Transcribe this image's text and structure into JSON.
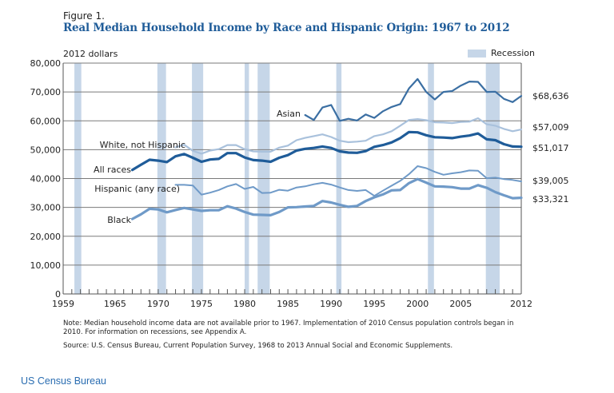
{
  "figure_label": "Figure 1.",
  "credit": "US Census Bureau",
  "note": "Note: Median household income data are not available prior to 1967. Implementation of 2010 Census population controls began in 2010. For information on recessions, see Appendix A.",
  "source": "Source: U.S. Census Bureau, Current Population Survey, 1968 to 2013 Annual Social and Economic Supplements.",
  "chart_data": {
    "type": "line",
    "title": "Real Median Household Income by Race and Hispanic Origin: 1967 to 2012",
    "ylabel": "2012 dollars",
    "xlabel": "",
    "xlim": [
      1959,
      2012
    ],
    "ylim": [
      0,
      80000
    ],
    "grid": true,
    "x_ticks": [
      1959,
      1965,
      1970,
      1975,
      1980,
      1985,
      1990,
      1995,
      2000,
      2005,
      2012
    ],
    "y_ticks": [
      0,
      10000,
      20000,
      30000,
      40000,
      50000,
      60000,
      70000,
      80000
    ],
    "y_tick_labels": [
      "0",
      "10,000",
      "20,000",
      "30,000",
      "40,000",
      "50,000",
      "60,000",
      "70,000",
      "80,000"
    ],
    "legend": {
      "label": "Recession",
      "placement": "top-right",
      "color": "#c6d6e8"
    },
    "recessions": [
      [
        1960.3,
        1961.1
      ],
      [
        1969.9,
        1970.9
      ],
      [
        1973.9,
        1975.2
      ],
      [
        1980.0,
        1980.5
      ],
      [
        1981.5,
        1982.9
      ],
      [
        1990.6,
        1991.2
      ],
      [
        2001.2,
        2001.9
      ],
      [
        2007.9,
        2009.5
      ]
    ],
    "series": [
      {
        "name": "Asian",
        "label": "Asian",
        "end_label": "$68,636",
        "color": "#3b6fa3",
        "width": 2.2,
        "x": [
          1987,
          1988,
          1989,
          1990,
          1991,
          1992,
          1993,
          1994,
          1995,
          1996,
          1997,
          1998,
          1999,
          2000,
          2001,
          2002,
          2003,
          2004,
          2005,
          2006,
          2007,
          2008,
          2009,
          2010,
          2011,
          2012
        ],
        "values": [
          62000,
          60300,
          64600,
          65500,
          60000,
          60700,
          60100,
          62200,
          61000,
          63300,
          64800,
          65800,
          71200,
          74500,
          70000,
          67400,
          70000,
          70300,
          72200,
          73600,
          73500,
          70000,
          70100,
          67600,
          66500,
          68636
        ]
      },
      {
        "name": "White, not Hispanic",
        "label": "White, not Hispanic",
        "end_label": "$57,009",
        "color": "#a9c1dc",
        "width": 2.2,
        "x": [
          1972,
          1973,
          1974,
          1975,
          1976,
          1977,
          1978,
          1979,
          1980,
          1981,
          1982,
          1983,
          1984,
          1985,
          1986,
          1987,
          1988,
          1989,
          1990,
          1991,
          1992,
          1993,
          1994,
          1995,
          1996,
          1997,
          1998,
          1999,
          2000,
          2001,
          2002,
          2003,
          2004,
          2005,
          2006,
          2007,
          2008,
          2009,
          2010,
          2011,
          2012
        ],
        "values": [
          50800,
          51700,
          49600,
          48600,
          49700,
          50200,
          51600,
          51600,
          50200,
          49400,
          49300,
          49300,
          50700,
          51400,
          53300,
          54100,
          54700,
          55300,
          54400,
          53100,
          52600,
          52800,
          53100,
          54700,
          55300,
          56400,
          58300,
          60300,
          60600,
          60200,
          59500,
          59400,
          59200,
          59600,
          59700,
          60900,
          58800,
          58300,
          57200,
          56400,
          57009
        ]
      },
      {
        "name": "All races",
        "label": "All races",
        "end_label": "$51,017",
        "color": "#1f5c99",
        "width": 3.2,
        "x": [
          1967,
          1968,
          1969,
          1970,
          1971,
          1972,
          1973,
          1974,
          1975,
          1976,
          1977,
          1978,
          1979,
          1980,
          1981,
          1982,
          1983,
          1984,
          1985,
          1986,
          1987,
          1988,
          1989,
          1990,
          1991,
          1992,
          1993,
          1994,
          1995,
          1996,
          1997,
          1998,
          1999,
          2000,
          2001,
          2002,
          2003,
          2004,
          2005,
          2006,
          2007,
          2008,
          2009,
          2010,
          2011,
          2012
        ],
        "values": [
          43000,
          44800,
          46500,
          46200,
          45700,
          47700,
          48500,
          47200,
          45800,
          46600,
          46800,
          48800,
          48800,
          47300,
          46400,
          46200,
          45800,
          47200,
          48100,
          49700,
          50300,
          50600,
          51100,
          50600,
          49400,
          49000,
          48900,
          49500,
          51000,
          51600,
          52500,
          54000,
          56100,
          56000,
          55000,
          54300,
          54200,
          54000,
          54500,
          54900,
          55600,
          53600,
          53300,
          51900,
          51100,
          51017
        ]
      },
      {
        "name": "Hispanic (any race)",
        "label": "Hispanic (any race)",
        "end_label": "$39,005",
        "color": "#6f9ac8",
        "width": 2.0,
        "x": [
          1972,
          1973,
          1974,
          1975,
          1976,
          1977,
          1978,
          1979,
          1980,
          1981,
          1982,
          1983,
          1984,
          1985,
          1986,
          1987,
          1988,
          1989,
          1990,
          1991,
          1992,
          1993,
          1994,
          1995,
          1996,
          1997,
          1998,
          1999,
          2000,
          2001,
          2002,
          2003,
          2004,
          2005,
          2006,
          2007,
          2008,
          2009,
          2010,
          2011,
          2012
        ],
        "values": [
          37800,
          37800,
          37600,
          34400,
          35100,
          36000,
          37300,
          38100,
          36400,
          37100,
          35000,
          35100,
          36100,
          35800,
          36900,
          37300,
          38000,
          38500,
          37900,
          36900,
          36000,
          35700,
          36000,
          34000,
          35800,
          37500,
          39200,
          41500,
          44300,
          43600,
          42300,
          41300,
          41800,
          42200,
          42800,
          42700,
          40100,
          40300,
          39800,
          39500,
          39005
        ]
      },
      {
        "name": "Black",
        "label": "Black",
        "end_label": "$33,321",
        "color": "#6f9ac8",
        "width": 3.2,
        "x": [
          1967,
          1968,
          1969,
          1970,
          1971,
          1972,
          1973,
          1974,
          1975,
          1976,
          1977,
          1978,
          1979,
          1980,
          1981,
          1982,
          1983,
          1984,
          1985,
          1986,
          1987,
          1988,
          1989,
          1990,
          1991,
          1992,
          1993,
          1994,
          1995,
          1996,
          1997,
          1998,
          1999,
          2000,
          2001,
          2002,
          2003,
          2004,
          2005,
          2006,
          2007,
          2008,
          2009,
          2010,
          2011,
          2012
        ],
        "values": [
          26000,
          27600,
          29500,
          29300,
          28300,
          29100,
          29800,
          29300,
          28800,
          29000,
          29000,
          30400,
          29600,
          28400,
          27500,
          27400,
          27300,
          28400,
          30000,
          30100,
          30300,
          30500,
          32200,
          31700,
          30900,
          30200,
          30500,
          32200,
          33500,
          34500,
          35900,
          36000,
          38400,
          39800,
          38600,
          37300,
          37200,
          37000,
          36500,
          36500,
          37700,
          36800,
          35300,
          34200,
          33200,
          33321
        ]
      }
    ]
  }
}
